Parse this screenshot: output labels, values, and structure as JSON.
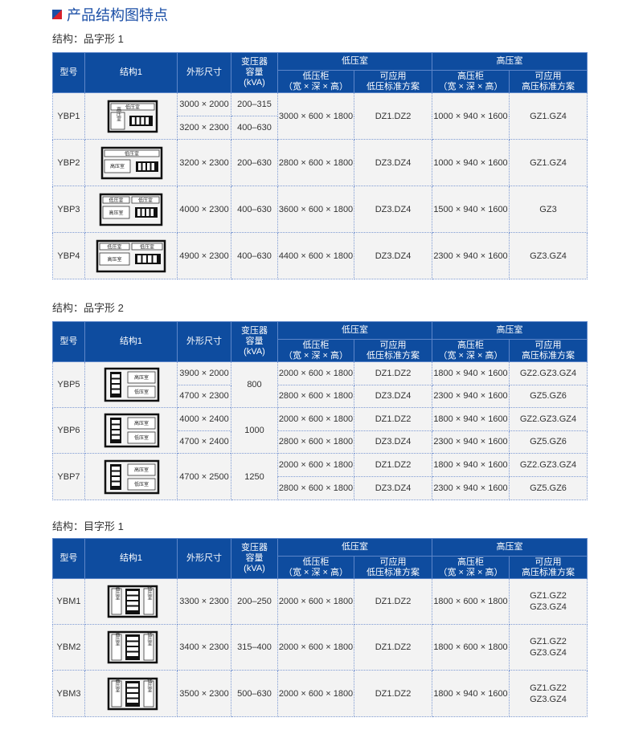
{
  "title": "产品结构图特点",
  "header": {
    "model": "型号",
    "structure": "结构1",
    "size": "外形尺寸",
    "capacity": "变压器\n容量\n(kVA)",
    "lv_room": "低压室",
    "hv_room": "高压室",
    "lv_cabinet": "低压柜\n（宽 × 深 × 高）",
    "lv_scheme": "可应用\n低压标准方案",
    "hv_cabinet": "高压柜\n（宽 × 深 × 高）",
    "hv_scheme": "可应用\n高压标准方案"
  },
  "colors": {
    "header_bg": "#0e4c9f",
    "title": "#1a4ea6",
    "accent_red": "#d9212b",
    "cell_bg": "#f3f3f3"
  },
  "sections": [
    {
      "label": "结构：品字形 1",
      "rows": [
        {
          "model": "YBP1",
          "diagram": {
            "type": "p1",
            "lv": "低压室",
            "hv": "高压室"
          },
          "size": [
            "3000 × 2000",
            "3200 × 2300"
          ],
          "capacity": [
            "200–315",
            "400–630"
          ],
          "lv_cabinet": "3000 × 600 × 1800",
          "lv_scheme": "DZ1.DZ2",
          "hv_cabinet": "1000 × 940 × 1600",
          "hv_scheme": "GZ1.GZ4"
        },
        {
          "model": "YBP2",
          "diagram": {
            "type": "p2",
            "lv": "低压室",
            "hv": "高压室"
          },
          "size": "3200 × 2300",
          "capacity": "200–630",
          "lv_cabinet": "2800 × 600 × 1800",
          "lv_scheme": "DZ3.DZ4",
          "hv_cabinet": "1000 × 940 × 1600",
          "hv_scheme": "GZ1.GZ4"
        },
        {
          "model": "YBP3",
          "diagram": {
            "type": "p3",
            "lv": "低压室",
            "hv": "高压室"
          },
          "size": "4000 × 2300",
          "capacity": "400–630",
          "lv_cabinet": "3600 × 600 × 1800",
          "lv_scheme": "DZ3.DZ4",
          "hv_cabinet": "1500 × 940 × 1600",
          "hv_scheme": "GZ3"
        },
        {
          "model": "YBP4",
          "diagram": {
            "type": "p4",
            "lv": "低压室",
            "hv": "高压室"
          },
          "size": "4900 × 2300",
          "capacity": "400–630",
          "lv_cabinet": "4400 × 600 × 1800",
          "lv_scheme": "DZ3.DZ4",
          "hv_cabinet": "2300 × 940 × 1600",
          "hv_scheme": "GZ3.GZ4"
        }
      ]
    },
    {
      "label": "结构：品字形 2",
      "rows": [
        {
          "model": "YBP5",
          "diagram": {
            "type": "p5",
            "lv": "低压室",
            "hv": "高压室"
          },
          "size": [
            "3900 × 2000",
            "4700 × 2300"
          ],
          "capacity": "800",
          "lv_cabinet": [
            "2000 × 600 × 1800",
            "2800 × 600 × 1800"
          ],
          "lv_scheme": [
            "DZ1.DZ2",
            "DZ3.DZ4"
          ],
          "hv_cabinet": [
            "1800 × 940 × 1600",
            "2300 × 940 × 1600"
          ],
          "hv_scheme": [
            "GZ2.GZ3.GZ4",
            "GZ5.GZ6"
          ]
        },
        {
          "model": "YBP6",
          "diagram": {
            "type": "p5",
            "lv": "低压室",
            "hv": "高压室"
          },
          "size": [
            "4000 × 2400",
            "4700 × 2400"
          ],
          "capacity": "1000",
          "lv_cabinet": [
            "2000 × 600 × 1800",
            "2800 × 600 × 1800"
          ],
          "lv_scheme": [
            "DZ1.DZ2",
            "DZ3.DZ4"
          ],
          "hv_cabinet": [
            "1800 × 940 × 1600",
            "2300 × 940 × 1600"
          ],
          "hv_scheme": [
            "GZ2.GZ3.GZ4",
            "GZ5.GZ6"
          ]
        },
        {
          "model": "YBP7",
          "diagram": {
            "type": "p5",
            "lv": "低压室",
            "hv": "高压室"
          },
          "size": "4700 × 2500",
          "capacity": "1250",
          "lv_cabinet": [
            "2000 × 600 × 1800",
            "2800 × 600 × 1800"
          ],
          "lv_scheme": [
            "DZ1.DZ2",
            "DZ3.DZ4"
          ],
          "hv_cabinet": [
            "1800 × 940 × 1600",
            "2300 × 940 × 1600"
          ],
          "hv_scheme": [
            "GZ2.GZ3.GZ4",
            "GZ5.GZ6"
          ]
        }
      ]
    },
    {
      "label": "结构：目字形 1",
      "rows": [
        {
          "model": "YBM1",
          "diagram": {
            "type": "m",
            "lv": "低压室",
            "hv": "高压室"
          },
          "size": "3300 × 2300",
          "capacity": "200–250",
          "lv_cabinet": "2000 × 600 × 1800",
          "lv_scheme": "DZ1.DZ2",
          "hv_cabinet": "1800 × 600 × 1800",
          "hv_scheme": "GZ1.GZ2\nGZ3.GZ4"
        },
        {
          "model": "YBM2",
          "diagram": {
            "type": "m",
            "lv": "低压室",
            "hv": "高压室"
          },
          "size": "3400 × 2300",
          "capacity": "315–400",
          "lv_cabinet": "2000 × 600 × 1800",
          "lv_scheme": "DZ1.DZ2",
          "hv_cabinet": "1800 × 600 × 1800",
          "hv_scheme": "GZ1.GZ2\nGZ3.GZ4"
        },
        {
          "model": "YBM3",
          "diagram": {
            "type": "m",
            "lv": "低压室",
            "hv": "高压室"
          },
          "size": "3500 × 2300",
          "capacity": "500–630",
          "lv_cabinet": "2000 × 600 × 1800",
          "lv_scheme": "DZ1.DZ2",
          "hv_cabinet": "1800 × 940 × 1600",
          "hv_scheme": "GZ1.GZ2\nGZ3.GZ4"
        }
      ]
    }
  ]
}
